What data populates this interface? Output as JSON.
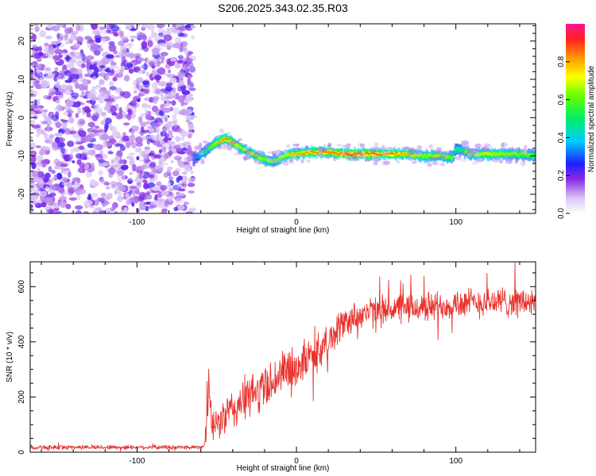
{
  "title": "S206.2025.343.02.35.R03",
  "chart_data": [
    {
      "type": "heatmap",
      "xlabel": "Height of straight line (km)",
      "ylabel": "Frequency (Hz)",
      "xlim": [
        -167,
        150
      ],
      "ylim": [
        -25,
        24.5
      ],
      "x_ticks": [
        -100,
        0,
        100
      ],
      "y_ticks": [
        -20,
        -10,
        0,
        10,
        20
      ],
      "noise_region_x": [
        -167,
        -65
      ],
      "colorbar": {
        "label": "Normalized spectral amplitude",
        "range": [
          0,
          1
        ],
        "ticks": [
          0.0,
          0.2,
          0.4,
          0.6,
          0.8
        ],
        "tick_labels": [
          "0.0",
          "0.2",
          "0.4",
          "0.6",
          "0.8"
        ]
      },
      "ridge": {
        "x": [
          -65,
          -60,
          -55,
          -50,
          -45,
          -40,
          -35,
          -30,
          -25,
          -20,
          -15,
          -10,
          -5,
          0,
          10,
          20,
          30,
          40,
          50,
          60,
          70,
          80,
          90,
          98,
          100,
          110,
          120,
          130,
          140,
          150
        ],
        "frequency": [
          -11,
          -9.5,
          -8,
          -6.5,
          -5.5,
          -6.5,
          -8,
          -9,
          -10,
          -11,
          -11.5,
          -10.5,
          -9.5,
          -9.5,
          -9,
          -9,
          -9.5,
          -9.5,
          -9.5,
          -9.5,
          -9.5,
          -10,
          -10,
          -10.5,
          -8,
          -9.5,
          -9.5,
          -9.5,
          -9.5,
          -10
        ],
        "amplitude": [
          0.35,
          0.45,
          0.6,
          0.8,
          0.9,
          0.8,
          0.7,
          0.75,
          0.8,
          0.7,
          0.6,
          0.7,
          0.8,
          0.8,
          0.9,
          0.95,
          1.0,
          1.0,
          0.95,
          0.95,
          0.8,
          0.7,
          0.75,
          0.6,
          0.5,
          0.7,
          0.8,
          0.7,
          0.65,
          0.6
        ]
      }
    },
    {
      "type": "line",
      "xlabel": "Height of straight line (km)",
      "ylabel": "SNR (10 * v/v)",
      "xlim": [
        -167,
        150
      ],
      "ylim": [
        0,
        690
      ],
      "x_ticks": [
        -100,
        0,
        100
      ],
      "y_ticks": [
        0,
        200,
        400,
        600
      ],
      "series": [
        {
          "name": "SNR",
          "color": "#e8322d",
          "x": [
            -167,
            -140,
            -120,
            -100,
            -80,
            -65,
            -58,
            -56,
            -55,
            -53,
            -50,
            -45,
            -40,
            -35,
            -30,
            -25,
            -20,
            -15,
            -10,
            -5,
            0,
            5,
            10,
            15,
            20,
            25,
            30,
            40,
            50,
            60,
            70,
            80,
            90,
            100,
            110,
            120,
            130,
            140,
            150
          ],
          "mean": [
            18,
            18,
            18,
            18,
            18,
            18,
            20,
            120,
            260,
            80,
            100,
            130,
            150,
            180,
            200,
            220,
            240,
            260,
            280,
            300,
            310,
            330,
            350,
            370,
            400,
            440,
            470,
            500,
            510,
            520,
            520,
            525,
            530,
            540,
            540,
            545,
            545,
            545,
            540
          ],
          "spread": [
            8,
            8,
            8,
            8,
            8,
            8,
            8,
            80,
            40,
            50,
            60,
            70,
            80,
            80,
            80,
            80,
            80,
            80,
            80,
            80,
            80,
            70,
            70,
            70,
            60,
            60,
            60,
            55,
            55,
            55,
            55,
            55,
            55,
            55,
            55,
            55,
            55,
            55,
            55
          ]
        }
      ]
    }
  ]
}
